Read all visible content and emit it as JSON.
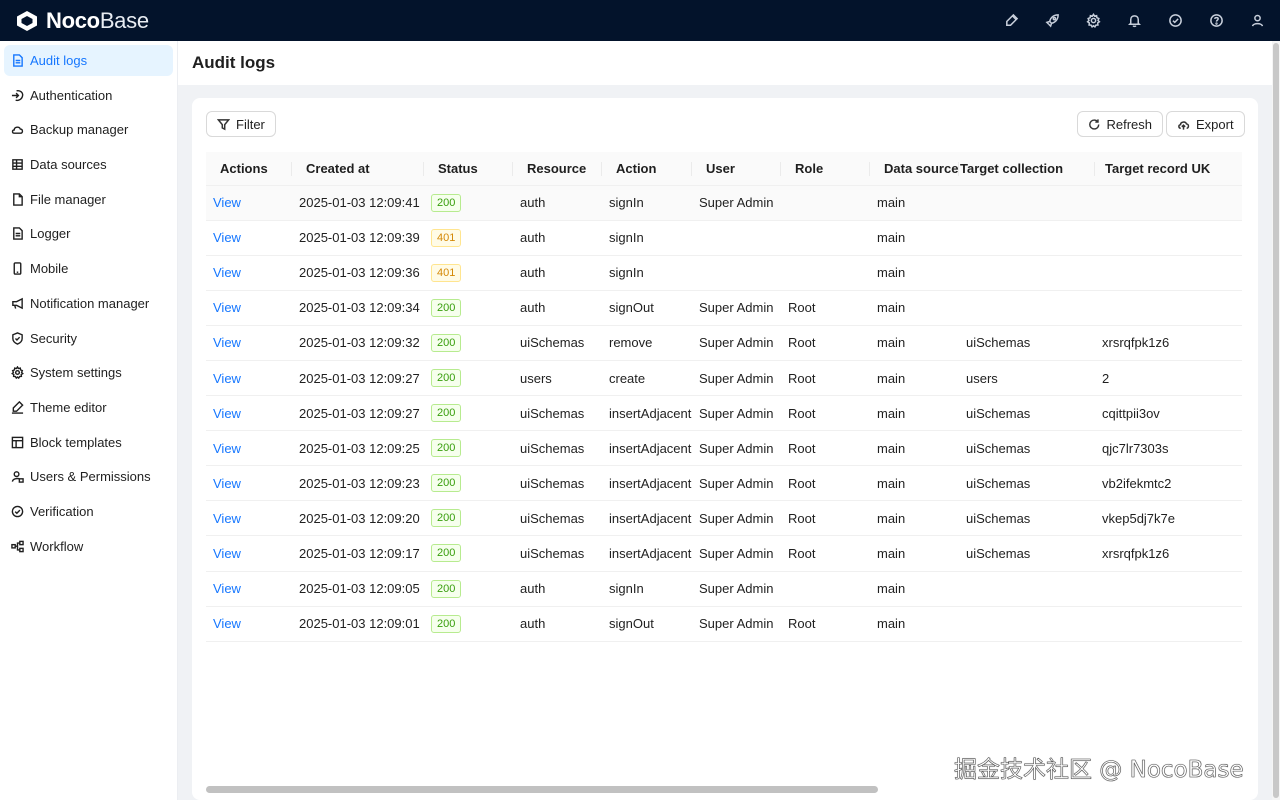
{
  "app": {
    "logo_bold": "Noco",
    "logo_light": "Base"
  },
  "header_icons": [
    "brush-icon",
    "rocket-icon",
    "gear-icon",
    "bell-icon",
    "check-circle-icon",
    "help-icon",
    "user-icon"
  ],
  "sidebar": {
    "items": [
      {
        "label": "Audit logs",
        "icon": "file-text-icon",
        "active": true
      },
      {
        "label": "Authentication",
        "icon": "login-icon"
      },
      {
        "label": "Backup manager",
        "icon": "cloud-icon"
      },
      {
        "label": "Data sources",
        "icon": "database-icon"
      },
      {
        "label": "File manager",
        "icon": "file-icon"
      },
      {
        "label": "Logger",
        "icon": "file-text-icon"
      },
      {
        "label": "Mobile",
        "icon": "mobile-icon"
      },
      {
        "label": "Notification manager",
        "icon": "megaphone-icon"
      },
      {
        "label": "Security",
        "icon": "shield-icon"
      },
      {
        "label": "System settings",
        "icon": "gear-icon"
      },
      {
        "label": "Theme editor",
        "icon": "brush-icon"
      },
      {
        "label": "Block templates",
        "icon": "layout-icon"
      },
      {
        "label": "Users & Permissions",
        "icon": "user-lock-icon"
      },
      {
        "label": "Verification",
        "icon": "check-circle-icon"
      },
      {
        "label": "Workflow",
        "icon": "workflow-icon"
      }
    ]
  },
  "page": {
    "title": "Audit logs"
  },
  "toolbar": {
    "filter_label": "Filter",
    "refresh_label": "Refresh",
    "export_label": "Export"
  },
  "table": {
    "columns": [
      "Actions",
      "Created at",
      "Status",
      "Resource",
      "Action",
      "User",
      "Role",
      "Data source",
      "Target collection",
      "Target record UK"
    ],
    "rows": [
      [
        "View",
        "2025-01-03 12:09:41",
        "200",
        "auth",
        "signIn",
        "Super Admin",
        "",
        "main",
        "",
        ""
      ],
      [
        "View",
        "2025-01-03 12:09:39",
        "401",
        "auth",
        "signIn",
        "",
        "",
        "main",
        "",
        ""
      ],
      [
        "View",
        "2025-01-03 12:09:36",
        "401",
        "auth",
        "signIn",
        "",
        "",
        "main",
        "",
        ""
      ],
      [
        "View",
        "2025-01-03 12:09:34",
        "200",
        "auth",
        "signOut",
        "Super Admin",
        "Root",
        "main",
        "",
        ""
      ],
      [
        "View",
        "2025-01-03 12:09:32",
        "200",
        "uiSchemas",
        "remove",
        "Super Admin",
        "Root",
        "main",
        "uiSchemas",
        "xrsrqfpk1z6"
      ],
      [
        "View",
        "2025-01-03 12:09:27",
        "200",
        "users",
        "create",
        "Super Admin",
        "Root",
        "main",
        "users",
        "2"
      ],
      [
        "View",
        "2025-01-03 12:09:27",
        "200",
        "uiSchemas",
        "insertAdjacent",
        "Super Admin",
        "Root",
        "main",
        "uiSchemas",
        "cqittpii3ov"
      ],
      [
        "View",
        "2025-01-03 12:09:25",
        "200",
        "uiSchemas",
        "insertAdjacent",
        "Super Admin",
        "Root",
        "main",
        "uiSchemas",
        "qjc7lr7303s"
      ],
      [
        "View",
        "2025-01-03 12:09:23",
        "200",
        "uiSchemas",
        "insertAdjacent",
        "Super Admin",
        "Root",
        "main",
        "uiSchemas",
        "vb2ifekmtc2"
      ],
      [
        "View",
        "2025-01-03 12:09:20",
        "200",
        "uiSchemas",
        "insertAdjacent",
        "Super Admin",
        "Root",
        "main",
        "uiSchemas",
        "vkep5dj7k7e"
      ],
      [
        "View",
        "2025-01-03 12:09:17",
        "200",
        "uiSchemas",
        "insertAdjacent",
        "Super Admin",
        "Root",
        "main",
        "uiSchemas",
        "xrsrqfpk1z6"
      ],
      [
        "View",
        "2025-01-03 12:09:05",
        "200",
        "auth",
        "signIn",
        "Super Admin",
        "",
        "main",
        "",
        ""
      ],
      [
        "View",
        "2025-01-03 12:09:01",
        "200",
        "auth",
        "signOut",
        "Super Admin",
        "Root",
        "main",
        "",
        ""
      ]
    ]
  },
  "watermark": "掘金技术社区 @ NocoBase"
}
